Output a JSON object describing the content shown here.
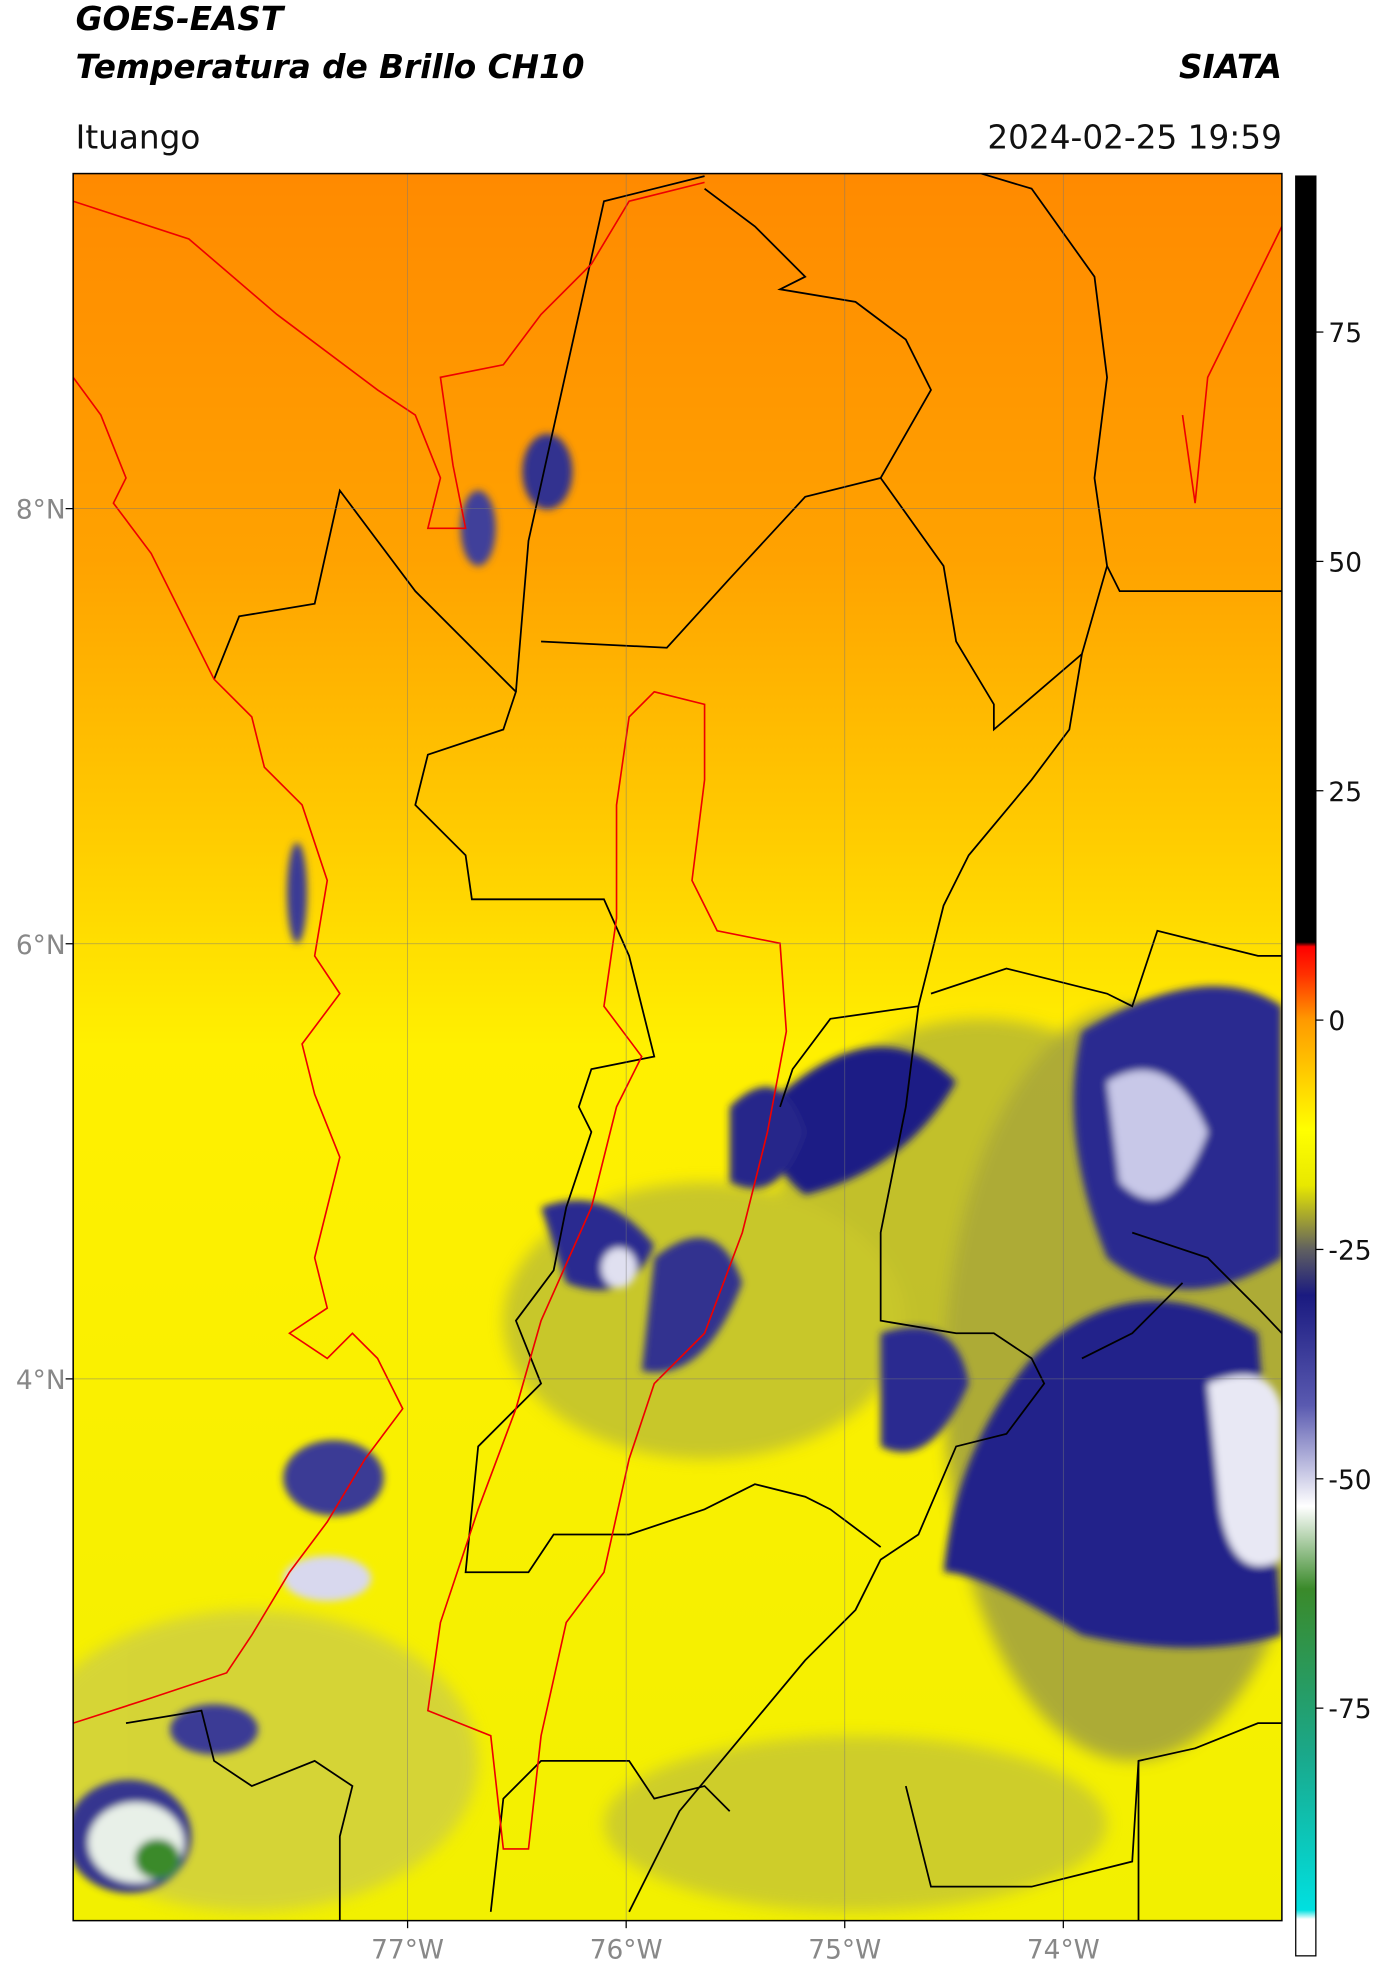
{
  "header": {
    "title_line1": "GOES-EAST",
    "title_line2": "Temperatura de Brillo CH10",
    "source": "SIATA",
    "location": "Ituango",
    "datetime": "2024-02-25 19:59"
  },
  "map": {
    "xlim": [
      -78.53,
      -73.0
    ],
    "ylim": [
      1.51,
      9.54
    ],
    "xticks": [
      {
        "value": -77,
        "label": "77°W"
      },
      {
        "value": -76,
        "label": "76°W"
      },
      {
        "value": -75,
        "label": "75°W"
      },
      {
        "value": -74,
        "label": "74°W"
      }
    ],
    "yticks": [
      {
        "value": 8,
        "label": "8°N"
      },
      {
        "value": 6,
        "label": "6°N"
      },
      {
        "value": 4,
        "label": "4°N"
      }
    ],
    "grid": true
  },
  "colorbar": {
    "lim": [
      -102,
      92
    ],
    "ticks": [
      75,
      50,
      25,
      0,
      -25,
      -50,
      -75
    ],
    "stops": [
      {
        "value": -102,
        "color": "#ffffff"
      },
      {
        "value": -98,
        "color": "#ffffff"
      },
      {
        "value": -97,
        "color": "#00e0e0"
      },
      {
        "value": -80,
        "color": "#1aa88a"
      },
      {
        "value": -62,
        "color": "#3a8a2a"
      },
      {
        "value": -53,
        "color": "#ffffff"
      },
      {
        "value": -42,
        "color": "#5a5ab0"
      },
      {
        "value": -30,
        "color": "#1a1a80"
      },
      {
        "value": -25,
        "color": "#606060"
      },
      {
        "value": -18,
        "color": "#e8e800"
      },
      {
        "value": -12,
        "color": "#ffff00"
      },
      {
        "value": 0,
        "color": "#ff9a00"
      },
      {
        "value": 5,
        "color": "#ff3000"
      },
      {
        "value": 8,
        "color": "#ff0000"
      },
      {
        "value": 8.5,
        "color": "#000000"
      },
      {
        "value": 92,
        "color": "#000000"
      }
    ]
  }
}
